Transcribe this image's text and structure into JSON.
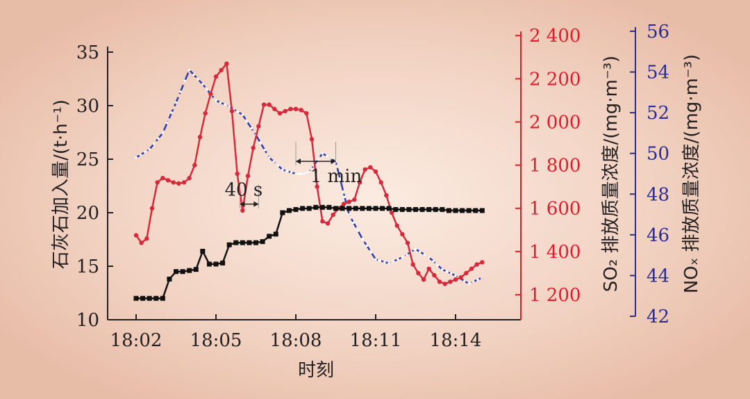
{
  "chart_data": {
    "type": "line",
    "xlabel": "时刻",
    "x_ticks": [
      "18:02",
      "18:05",
      "18:08",
      "18:11",
      "18:14"
    ],
    "x_tick_minutes": [
      0,
      3,
      6,
      9,
      12
    ],
    "x_unit": "minutes after 18:02",
    "axes": {
      "left": {
        "label": "石灰石加入量/(t·h⁻¹)",
        "ylim": [
          10,
          35
        ],
        "ticks": [
          "10",
          "15",
          "20",
          "25",
          "30",
          "35"
        ],
        "tick_values": [
          10,
          15,
          20,
          25,
          30,
          35
        ],
        "color": "#231f20"
      },
      "right1": {
        "label": "SO₂ 排放质量浓度/(mg·m⁻³)",
        "ylim": [
          1100,
          2420
        ],
        "ticks": [
          "1 200",
          "1 400",
          "1 600",
          "1 800",
          "2 000",
          "2 200",
          "2 400"
        ],
        "tick_values": [
          1200,
          1400,
          1600,
          1800,
          2000,
          2200,
          2400
        ],
        "color": "#e21a2c"
      },
      "right2": {
        "label": "NOₓ 排放质量浓度/(mg·m⁻³)",
        "ylim": [
          42,
          56
        ],
        "ticks": [
          "42",
          "44",
          "46",
          "48",
          "50",
          "52",
          "54",
          "56"
        ],
        "tick_values": [
          42,
          44,
          46,
          48,
          50,
          52,
          54,
          56
        ],
        "color": "#2a2d8f"
      }
    },
    "series": [
      {
        "axis": "left",
        "color": "#111111",
        "marker": "square",
        "x": [
          0,
          0.25,
          0.5,
          0.75,
          1.0,
          1.25,
          1.5,
          1.75,
          2.0,
          2.25,
          2.5,
          2.75,
          3.0,
          3.25,
          3.5,
          3.75,
          4.0,
          4.25,
          4.5,
          4.75,
          5.0,
          5.25,
          5.5,
          5.75,
          6.0,
          6.25,
          6.5,
          6.75,
          7.0,
          7.25,
          7.5,
          7.75,
          8.0,
          8.25,
          8.5,
          8.75,
          9.0,
          9.25,
          9.5,
          9.75,
          10.0,
          10.25,
          10.5,
          10.75,
          11.0,
          11.25,
          11.5,
          11.75,
          12.0,
          12.25,
          12.5,
          12.75,
          13.0
        ],
        "values": [
          12,
          12,
          12,
          12,
          12,
          13.8,
          14.5,
          14.5,
          14.6,
          14.7,
          16.4,
          15.2,
          15.2,
          15.3,
          17,
          17.2,
          17.2,
          17.2,
          17.2,
          17.3,
          17.8,
          18.0,
          20.0,
          20.2,
          20.3,
          20.4,
          20.4,
          20.5,
          20.5,
          20.5,
          20.4,
          20.4,
          20.4,
          20.4,
          20.4,
          20.4,
          20.4,
          20.4,
          20.4,
          20.3,
          20.3,
          20.3,
          20.3,
          20.3,
          20.3,
          20.3,
          20.3,
          20.2,
          20.2,
          20.2,
          20.2,
          20.2,
          20.2
        ]
      },
      {
        "axis": "right1",
        "color": "#d42a3c",
        "marker": "circle",
        "x": [
          0,
          0.2,
          0.4,
          0.6,
          0.8,
          1.0,
          1.2,
          1.4,
          1.6,
          1.8,
          2.0,
          2.2,
          2.4,
          2.6,
          2.8,
          3.0,
          3.2,
          3.4,
          3.6,
          3.8,
          4.0,
          4.2,
          4.4,
          4.6,
          4.8,
          5.0,
          5.2,
          5.4,
          5.6,
          5.8,
          6.0,
          6.2,
          6.4,
          6.6,
          6.8,
          7.0,
          7.2,
          7.4,
          7.6,
          7.8,
          8.0,
          8.2,
          8.4,
          8.6,
          8.8,
          9.0,
          9.2,
          9.4,
          9.6,
          9.8,
          10.0,
          10.2,
          10.4,
          10.6,
          10.8,
          11.0,
          11.2,
          11.4,
          11.6,
          11.8,
          12.0,
          12.2,
          12.4,
          12.6,
          12.8,
          13.0
        ],
        "values": [
          1475,
          1440,
          1460,
          1600,
          1720,
          1740,
          1730,
          1720,
          1715,
          1720,
          1740,
          1800,
          1930,
          2040,
          2130,
          2210,
          2240,
          2270,
          2050,
          1760,
          1590,
          1750,
          1880,
          1980,
          2080,
          2080,
          2060,
          2040,
          2050,
          2060,
          2060,
          2055,
          2040,
          1920,
          1700,
          1540,
          1530,
          1570,
          1600,
          1620,
          1630,
          1640,
          1720,
          1780,
          1790,
          1770,
          1720,
          1660,
          1580,
          1520,
          1480,
          1440,
          1340,
          1300,
          1270,
          1320,
          1290,
          1260,
          1250,
          1260,
          1270,
          1280,
          1300,
          1320,
          1340,
          1350
        ]
      },
      {
        "axis": "right2",
        "color": "#2b3bb0",
        "marker": "circle",
        "x": [
          0,
          0.5,
          1.0,
          1.5,
          2.0,
          2.5,
          3.0,
          3.5,
          4.0,
          4.5,
          5.0,
          5.5,
          6.0,
          6.25,
          6.5,
          7.0,
          7.5,
          8.0,
          8.5,
          9.0,
          9.5,
          10.0,
          10.5,
          11.0,
          11.5,
          12.0,
          12.5,
          13.0
        ],
        "values": [
          49.8,
          50.2,
          51.0,
          52.5,
          54.1,
          53.4,
          52.6,
          52.3,
          51.9,
          50.9,
          49.8,
          49.2,
          49.0,
          49.0,
          49.1,
          50.0,
          49.6,
          47.0,
          45.8,
          44.8,
          44.6,
          44.9,
          45.3,
          44.9,
          44.3,
          44.0,
          43.6,
          43.9
        ]
      }
    ],
    "annotations": [
      {
        "text": "40 s",
        "x_range": [
          3.9,
          4.6
        ],
        "y_left": 20.8
      },
      {
        "text": "1 min",
        "x_range": [
          6.0,
          7.5
        ],
        "y_left": 24.8
      }
    ]
  }
}
